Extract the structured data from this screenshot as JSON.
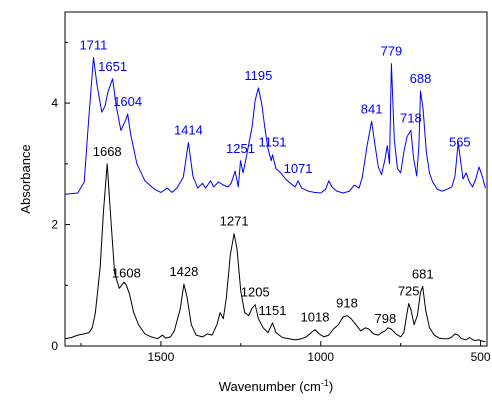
{
  "chart_data": {
    "type": "line",
    "title": "",
    "xlabel": "Wavenumber (cm",
    "xlabel_sup": "-1",
    "xlabel_close": ")",
    "ylabel": "Absorbance",
    "xlim": [
      1800,
      480
    ],
    "x_reversed": true,
    "ylim": [
      0,
      5.5
    ],
    "xticks": [
      1500,
      1000,
      500
    ],
    "xtick_labels": [
      "1500",
      "1000",
      "500"
    ],
    "yticks": [
      0,
      2,
      4
    ],
    "ytick_labels": [
      "0",
      "2",
      "4"
    ],
    "grid": false,
    "series": [
      {
        "color": "#0000ff",
        "label_color": "#0000ff",
        "points": [
          [
            1800,
            2.5
          ],
          [
            1760,
            2.52
          ],
          [
            1740,
            2.7
          ],
          [
            1725,
            3.8
          ],
          [
            1711,
            4.75
          ],
          [
            1700,
            4.3
          ],
          [
            1685,
            3.85
          ],
          [
            1675,
            3.95
          ],
          [
            1665,
            4.2
          ],
          [
            1651,
            4.4
          ],
          [
            1640,
            3.95
          ],
          [
            1625,
            3.55
          ],
          [
            1610,
            3.72
          ],
          [
            1604,
            3.82
          ],
          [
            1595,
            3.5
          ],
          [
            1575,
            3.0
          ],
          [
            1550,
            2.72
          ],
          [
            1520,
            2.58
          ],
          [
            1500,
            2.53
          ],
          [
            1480,
            2.6
          ],
          [
            1465,
            2.53
          ],
          [
            1450,
            2.6
          ],
          [
            1430,
            2.78
          ],
          [
            1414,
            3.35
          ],
          [
            1400,
            2.8
          ],
          [
            1385,
            2.6
          ],
          [
            1370,
            2.68
          ],
          [
            1360,
            2.6
          ],
          [
            1345,
            2.72
          ],
          [
            1335,
            2.62
          ],
          [
            1320,
            2.7
          ],
          [
            1305,
            2.65
          ],
          [
            1290,
            2.62
          ],
          [
            1280,
            2.68
          ],
          [
            1268,
            2.88
          ],
          [
            1258,
            2.62
          ],
          [
            1251,
            3.05
          ],
          [
            1243,
            2.85
          ],
          [
            1235,
            3.05
          ],
          [
            1228,
            3.25
          ],
          [
            1215,
            3.6
          ],
          [
            1205,
            4.05
          ],
          [
            1195,
            4.25
          ],
          [
            1185,
            4.0
          ],
          [
            1175,
            3.6
          ],
          [
            1165,
            3.25
          ],
          [
            1155,
            3.05
          ],
          [
            1151,
            3.15
          ],
          [
            1140,
            2.92
          ],
          [
            1125,
            2.85
          ],
          [
            1110,
            2.75
          ],
          [
            1095,
            2.68
          ],
          [
            1080,
            2.62
          ],
          [
            1071,
            2.72
          ],
          [
            1060,
            2.6
          ],
          [
            1040,
            2.55
          ],
          [
            1020,
            2.53
          ],
          [
            1000,
            2.52
          ],
          [
            985,
            2.58
          ],
          [
            975,
            2.72
          ],
          [
            965,
            2.62
          ],
          [
            950,
            2.55
          ],
          [
            930,
            2.52
          ],
          [
            910,
            2.55
          ],
          [
            895,
            2.65
          ],
          [
            880,
            2.6
          ],
          [
            870,
            2.78
          ],
          [
            855,
            3.3
          ],
          [
            841,
            3.7
          ],
          [
            830,
            3.3
          ],
          [
            820,
            2.95
          ],
          [
            810,
            2.82
          ],
          [
            800,
            3.05
          ],
          [
            792,
            3.3
          ],
          [
            785,
            3.0
          ],
          [
            779,
            4.65
          ],
          [
            770,
            3.4
          ],
          [
            760,
            2.92
          ],
          [
            750,
            2.85
          ],
          [
            740,
            3.2
          ],
          [
            730,
            3.45
          ],
          [
            718,
            3.55
          ],
          [
            710,
            3.1
          ],
          [
            700,
            2.8
          ],
          [
            693,
            3.3
          ],
          [
            688,
            4.2
          ],
          [
            680,
            3.9
          ],
          [
            670,
            3.2
          ],
          [
            660,
            2.85
          ],
          [
            650,
            2.7
          ],
          [
            635,
            2.58
          ],
          [
            620,
            2.55
          ],
          [
            605,
            2.58
          ],
          [
            590,
            2.62
          ],
          [
            580,
            2.8
          ],
          [
            570,
            3.35
          ],
          [
            565,
            3.15
          ],
          [
            555,
            2.75
          ],
          [
            545,
            2.85
          ],
          [
            535,
            2.7
          ],
          [
            525,
            2.62
          ],
          [
            515,
            2.75
          ],
          [
            505,
            2.95
          ],
          [
            495,
            2.8
          ],
          [
            485,
            2.6
          ]
        ],
        "peak_labels": [
          {
            "x": 1711,
            "text": "1711"
          },
          {
            "x": 1651,
            "text": "1651"
          },
          {
            "x": 1604,
            "text": "1604"
          },
          {
            "x": 1414,
            "text": "1414"
          },
          {
            "x": 1251,
            "text": "1251"
          },
          {
            "x": 1195,
            "text": "1195"
          },
          {
            "x": 1151,
            "text": "1151"
          },
          {
            "x": 1071,
            "text": "1071"
          },
          {
            "x": 841,
            "text": "841"
          },
          {
            "x": 779,
            "text": "779"
          },
          {
            "x": 718,
            "text": "718"
          },
          {
            "x": 688,
            "text": "688"
          },
          {
            "x": 565,
            "text": "565"
          }
        ]
      },
      {
        "color": "#000000",
        "label_color": "#000000",
        "points": [
          [
            1800,
            0.12
          ],
          [
            1780,
            0.14
          ],
          [
            1760,
            0.18
          ],
          [
            1740,
            0.2
          ],
          [
            1725,
            0.22
          ],
          [
            1715,
            0.3
          ],
          [
            1705,
            0.55
          ],
          [
            1690,
            1.3
          ],
          [
            1680,
            2.2
          ],
          [
            1668,
            3.0
          ],
          [
            1658,
            2.2
          ],
          [
            1645,
            1.2
          ],
          [
            1630,
            0.95
          ],
          [
            1615,
            1.05
          ],
          [
            1608,
            1.0
          ],
          [
            1598,
            0.85
          ],
          [
            1585,
            0.55
          ],
          [
            1570,
            0.35
          ],
          [
            1550,
            0.2
          ],
          [
            1530,
            0.15
          ],
          [
            1510,
            0.12
          ],
          [
            1495,
            0.18
          ],
          [
            1485,
            0.13
          ],
          [
            1470,
            0.15
          ],
          [
            1458,
            0.25
          ],
          [
            1440,
            0.6
          ],
          [
            1428,
            1.02
          ],
          [
            1418,
            0.8
          ],
          [
            1405,
            0.35
          ],
          [
            1390,
            0.18
          ],
          [
            1370,
            0.15
          ],
          [
            1355,
            0.2
          ],
          [
            1340,
            0.18
          ],
          [
            1325,
            0.35
          ],
          [
            1315,
            0.55
          ],
          [
            1305,
            0.45
          ],
          [
            1295,
            0.8
          ],
          [
            1283,
            1.5
          ],
          [
            1271,
            1.85
          ],
          [
            1262,
            1.6
          ],
          [
            1250,
            0.9
          ],
          [
            1238,
            0.55
          ],
          [
            1225,
            0.5
          ],
          [
            1215,
            0.62
          ],
          [
            1205,
            0.68
          ],
          [
            1195,
            0.45
          ],
          [
            1180,
            0.3
          ],
          [
            1165,
            0.22
          ],
          [
            1151,
            0.38
          ],
          [
            1140,
            0.22
          ],
          [
            1120,
            0.14
          ],
          [
            1100,
            0.12
          ],
          [
            1080,
            0.1
          ],
          [
            1060,
            0.12
          ],
          [
            1045,
            0.15
          ],
          [
            1030,
            0.22
          ],
          [
            1018,
            0.27
          ],
          [
            1005,
            0.2
          ],
          [
            990,
            0.15
          ],
          [
            975,
            0.18
          ],
          [
            960,
            0.28
          ],
          [
            945,
            0.35
          ],
          [
            930,
            0.48
          ],
          [
            918,
            0.5
          ],
          [
            905,
            0.45
          ],
          [
            890,
            0.35
          ],
          [
            875,
            0.25
          ],
          [
            860,
            0.3
          ],
          [
            850,
            0.28
          ],
          [
            835,
            0.2
          ],
          [
            820,
            0.18
          ],
          [
            810,
            0.22
          ],
          [
            798,
            0.25
          ],
          [
            790,
            0.3
          ],
          [
            780,
            0.28
          ],
          [
            765,
            0.2
          ],
          [
            750,
            0.15
          ],
          [
            740,
            0.22
          ],
          [
            733,
            0.45
          ],
          [
            725,
            0.7
          ],
          [
            718,
            0.6
          ],
          [
            708,
            0.35
          ],
          [
            698,
            0.5
          ],
          [
            688,
            0.88
          ],
          [
            681,
            0.98
          ],
          [
            672,
            0.6
          ],
          [
            660,
            0.3
          ],
          [
            645,
            0.18
          ],
          [
            630,
            0.13
          ],
          [
            615,
            0.12
          ],
          [
            600,
            0.12
          ],
          [
            590,
            0.15
          ],
          [
            580,
            0.2
          ],
          [
            570,
            0.18
          ],
          [
            560,
            0.12
          ],
          [
            545,
            0.1
          ],
          [
            535,
            0.14
          ],
          [
            520,
            0.09
          ],
          [
            505,
            0.1
          ],
          [
            495,
            0.08
          ],
          [
            485,
            0.07
          ]
        ],
        "peak_labels": [
          {
            "x": 1668,
            "text": "1668"
          },
          {
            "x": 1608,
            "text": "1608"
          },
          {
            "x": 1428,
            "text": "1428"
          },
          {
            "x": 1271,
            "text": "1271"
          },
          {
            "x": 1205,
            "text": "1205"
          },
          {
            "x": 1151,
            "text": "1151"
          },
          {
            "x": 1018,
            "text": "1018"
          },
          {
            "x": 918,
            "text": "918"
          },
          {
            "x": 798,
            "text": "798"
          },
          {
            "x": 725,
            "text": "725"
          },
          {
            "x": 681,
            "text": "681"
          }
        ]
      }
    ]
  }
}
